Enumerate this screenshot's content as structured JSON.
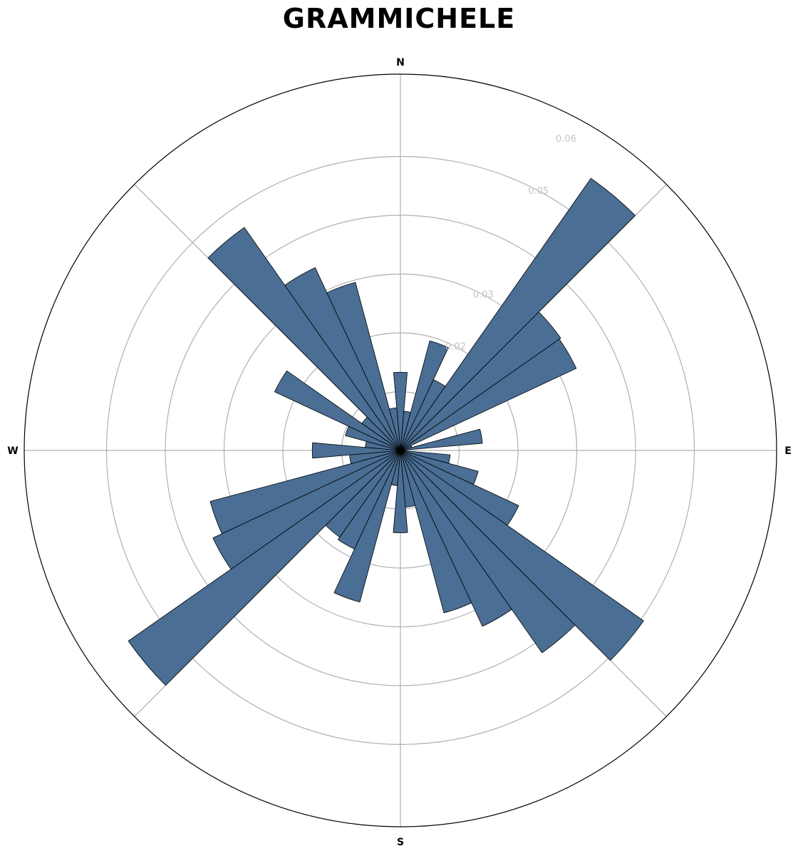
{
  "chart_data": {
    "type": "bar",
    "subtype": "wind-rose",
    "title": "GRAMMICHELE",
    "directions": [
      "N",
      "E",
      "S",
      "W"
    ],
    "radial_ticks": [
      "0.02",
      "0.03",
      "0.05",
      "0.06"
    ],
    "radial_tick_values": [
      0.02,
      0.03,
      0.05,
      0.06
    ],
    "radial_max": 0.064,
    "rings": [
      0.01,
      0.02,
      0.03,
      0.04,
      0.05
    ],
    "bar_color": "#4a6e94",
    "bar_edge_color": "#000000",
    "sector_width_deg": 10,
    "sectors_deg": [
      0,
      10,
      20,
      30,
      40,
      50,
      60,
      70,
      80,
      90,
      100,
      110,
      120,
      130,
      140,
      150,
      160,
      170,
      180,
      190,
      200,
      210,
      220,
      230,
      240,
      250,
      260,
      270,
      280,
      290,
      300,
      310,
      320,
      330,
      340,
      350
    ],
    "values": [
      0.0133,
      0.0067,
      0.0193,
      0.0133,
      0.0565,
      0.0333,
      0.033,
      0.002,
      0.014,
      0.001,
      0.0085,
      0.0137,
      0.0222,
      0.0505,
      0.042,
      0.033,
      0.0286,
      0.0097,
      0.014,
      0.006,
      0.0267,
      0.0185,
      0.018,
      0.0565,
      0.0352,
      0.0335,
      0.0087,
      0.015,
      0.006,
      0.0097,
      0.0236,
      0.008,
      0.0463,
      0.0343,
      0.0296,
      0.0073
    ]
  }
}
